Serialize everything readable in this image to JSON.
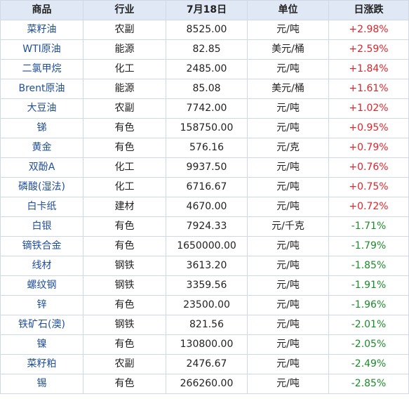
{
  "headers": {
    "product": "商品",
    "industry": "行业",
    "date": "7月18日",
    "unit": "单位",
    "change": "日涨跌"
  },
  "colors": {
    "header_bg": "#dfe8f4",
    "border": "#cfd8e3",
    "name_text": "#1f4e9a",
    "rise": "#e0242b",
    "fall": "#1a8c2a"
  },
  "rows": [
    {
      "name": "菜籽油",
      "industry": "农副",
      "price": "8525.00",
      "unit": "元/吨",
      "change": "+2.98%",
      "dir": "up"
    },
    {
      "name": "WTI原油",
      "industry": "能源",
      "price": "82.85",
      "unit": "美元/桶",
      "change": "+2.59%",
      "dir": "up"
    },
    {
      "name": "二氯甲烷",
      "industry": "化工",
      "price": "2485.00",
      "unit": "元/吨",
      "change": "+1.84%",
      "dir": "up"
    },
    {
      "name": "Brent原油",
      "industry": "能源",
      "price": "85.08",
      "unit": "美元/桶",
      "change": "+1.61%",
      "dir": "up"
    },
    {
      "name": "大豆油",
      "industry": "农副",
      "price": "7742.00",
      "unit": "元/吨",
      "change": "+1.02%",
      "dir": "up"
    },
    {
      "name": "锑",
      "industry": "有色",
      "price": "158750.00",
      "unit": "元/吨",
      "change": "+0.95%",
      "dir": "up"
    },
    {
      "name": "黄金",
      "industry": "有色",
      "price": "576.16",
      "unit": "元/克",
      "change": "+0.79%",
      "dir": "up"
    },
    {
      "name": "双酚A",
      "industry": "化工",
      "price": "9937.50",
      "unit": "元/吨",
      "change": "+0.76%",
      "dir": "up"
    },
    {
      "name": "磷酸(湿法)",
      "industry": "化工",
      "price": "6716.67",
      "unit": "元/吨",
      "change": "+0.75%",
      "dir": "up"
    },
    {
      "name": "白卡纸",
      "industry": "建材",
      "price": "4670.00",
      "unit": "元/吨",
      "change": "+0.72%",
      "dir": "up"
    },
    {
      "name": "白银",
      "industry": "有色",
      "price": "7924.33",
      "unit": "元/千克",
      "change": "-1.71%",
      "dir": "down"
    },
    {
      "name": "镝铁合金",
      "industry": "有色",
      "price": "1650000.00",
      "unit": "元/吨",
      "change": "-1.79%",
      "dir": "down"
    },
    {
      "name": "线材",
      "industry": "钢铁",
      "price": "3613.20",
      "unit": "元/吨",
      "change": "-1.85%",
      "dir": "down"
    },
    {
      "name": "螺纹钢",
      "industry": "钢铁",
      "price": "3359.56",
      "unit": "元/吨",
      "change": "-1.91%",
      "dir": "down"
    },
    {
      "name": "锌",
      "industry": "有色",
      "price": "23500.00",
      "unit": "元/吨",
      "change": "-1.96%",
      "dir": "down"
    },
    {
      "name": "铁矿石(澳)",
      "industry": "钢铁",
      "price": "821.56",
      "unit": "元/吨",
      "change": "-2.01%",
      "dir": "down"
    },
    {
      "name": "镍",
      "industry": "有色",
      "price": "130800.00",
      "unit": "元/吨",
      "change": "-2.05%",
      "dir": "down"
    },
    {
      "name": "菜籽粕",
      "industry": "农副",
      "price": "2476.67",
      "unit": "元/吨",
      "change": "-2.49%",
      "dir": "down"
    },
    {
      "name": "锡",
      "industry": "有色",
      "price": "266260.00",
      "unit": "元/吨",
      "change": "-2.85%",
      "dir": "down"
    }
  ]
}
